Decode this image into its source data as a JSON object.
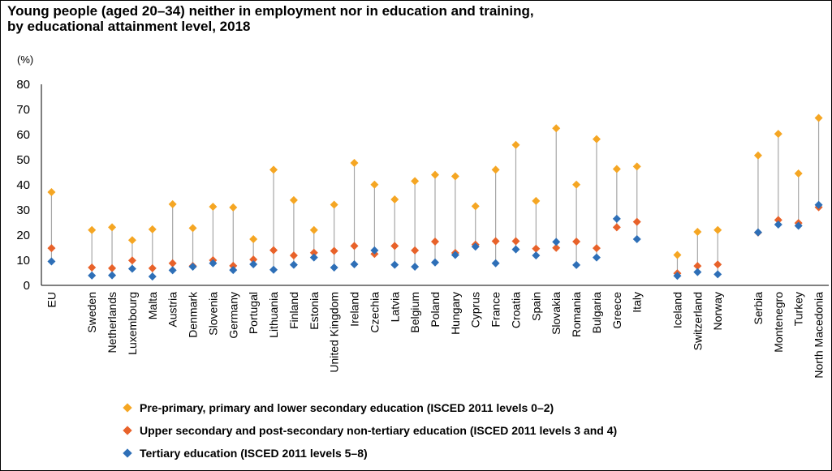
{
  "chart_data": {
    "type": "scatter",
    "title_line1": "Young people (aged 20–34) neither in employment  nor in education and training,",
    "title_line2": "by educational attainment level, 2018",
    "ylabel": "(%)",
    "ylim": [
      0,
      80
    ],
    "yticks": [
      0,
      10,
      20,
      30,
      40,
      50,
      60,
      70,
      80
    ],
    "grid": false,
    "legend_position": "bottom",
    "categories": [
      "EU",
      "",
      "Sweden",
      "Netherlands",
      "Luxembourg",
      "Malta",
      "Austria",
      "Denmark",
      "Slovenia",
      "Germany",
      "Portugal",
      "Lithuania",
      "Finland",
      "Estonia",
      "United Kingdom",
      "Ireland",
      "Czechia",
      "Latvia",
      "Belgium",
      "Poland",
      "Hungary",
      "Cyprus",
      "France",
      "Croatia",
      "Spain",
      "Slovakia",
      "Romania",
      "Bulgaria",
      "Greece",
      "Italy",
      "",
      "Iceland",
      "Switzerland",
      "Norway",
      "",
      "Serbia",
      "Montenegro",
      "Turkey",
      "North Macedonia"
    ],
    "series": [
      {
        "name": "Pre-primary, primary and lower secondary education (ISCED 2011 levels 0–2)",
        "color": "#F5A623",
        "values": [
          37.1,
          null,
          22.0,
          23.1,
          18.0,
          22.3,
          32.3,
          22.8,
          31.3,
          31.0,
          18.4,
          46.0,
          33.9,
          22.0,
          32.1,
          48.7,
          40.1,
          34.2,
          41.5,
          44.0,
          43.4,
          31.5,
          46.0,
          55.9,
          33.6,
          62.5,
          40.1,
          58.2,
          46.3,
          47.3,
          null,
          12.1,
          21.3,
          22.0,
          null,
          51.7,
          60.3,
          44.5,
          66.6
        ]
      },
      {
        "name": "Upper secondary and post-secondary non-tertiary education (ISCED 2011 levels 3 and 4)",
        "color": "#E8622A",
        "values": [
          14.8,
          null,
          7.1,
          6.8,
          9.9,
          6.8,
          8.8,
          7.7,
          10.0,
          7.8,
          10.3,
          14.0,
          11.9,
          13.0,
          13.7,
          15.7,
          12.5,
          15.7,
          13.9,
          17.4,
          12.9,
          16.2,
          17.6,
          17.6,
          14.6,
          14.9,
          17.4,
          14.8,
          23.1,
          25.3,
          null,
          4.8,
          7.7,
          8.3,
          null,
          21.0,
          26.0,
          24.8,
          31.1
        ]
      },
      {
        "name": "Tertiary education (ISCED 2011 levels 5–8)",
        "color": "#2E6FB7",
        "values": [
          9.5,
          null,
          3.9,
          4.0,
          6.6,
          3.5,
          6.0,
          7.4,
          8.8,
          6.1,
          8.4,
          6.2,
          8.2,
          11.1,
          7.1,
          8.4,
          13.9,
          8.2,
          7.4,
          9.1,
          12.1,
          15.4,
          8.8,
          14.3,
          11.9,
          17.3,
          8.1,
          11.1,
          26.5,
          18.4,
          null,
          3.8,
          5.3,
          4.4,
          null,
          21.1,
          24.2,
          23.7,
          32.0
        ]
      }
    ]
  }
}
